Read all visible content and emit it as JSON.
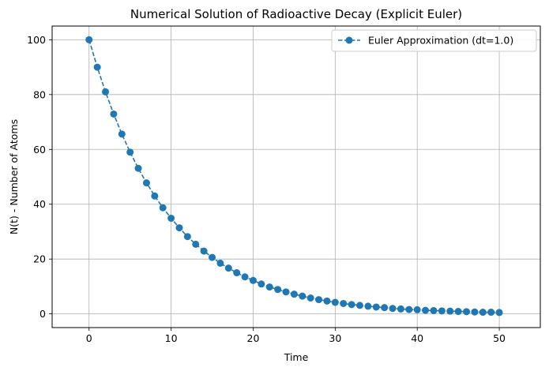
{
  "chart_data": {
    "type": "line",
    "title": "Numerical Solution of Radioactive Decay (Explicit Euler)",
    "xlabel": "Time",
    "ylabel": "N(t) - Number of Atoms",
    "xlim": [
      -4.5,
      55
    ],
    "ylim": [
      -5,
      105
    ],
    "xticks": [
      0,
      10,
      20,
      30,
      40,
      50
    ],
    "yticks": [
      0,
      20,
      40,
      60,
      80,
      100
    ],
    "grid": true,
    "legend_position": "top-right",
    "series": [
      {
        "name": "Euler Approximation (dt=1.0)",
        "color": "#1f77b4",
        "line_style": "dashed",
        "marker": "circle",
        "x": [
          0,
          1,
          2,
          3,
          4,
          5,
          6,
          7,
          8,
          9,
          10,
          11,
          12,
          13,
          14,
          15,
          16,
          17,
          18,
          19,
          20,
          21,
          22,
          23,
          24,
          25,
          26,
          27,
          28,
          29,
          30,
          31,
          32,
          33,
          34,
          35,
          36,
          37,
          38,
          39,
          40,
          41,
          42,
          43,
          44,
          45,
          46,
          47,
          48,
          49,
          50
        ],
        "y": [
          100,
          90,
          81,
          72.9,
          65.6,
          59,
          53.1,
          47.8,
          43,
          38.7,
          34.9,
          31.4,
          28.2,
          25.4,
          22.9,
          20.6,
          18.5,
          16.7,
          15,
          13.5,
          12.2,
          10.9,
          9.8,
          8.9,
          8,
          7.2,
          6.5,
          5.8,
          5.2,
          4.7,
          4.2,
          3.8,
          3.4,
          3.1,
          2.8,
          2.5,
          2.3,
          2,
          1.8,
          1.6,
          1.5,
          1.3,
          1.2,
          1.1,
          1,
          0.9,
          0.8,
          0.7,
          0.6,
          0.6,
          0.5
        ]
      }
    ]
  }
}
